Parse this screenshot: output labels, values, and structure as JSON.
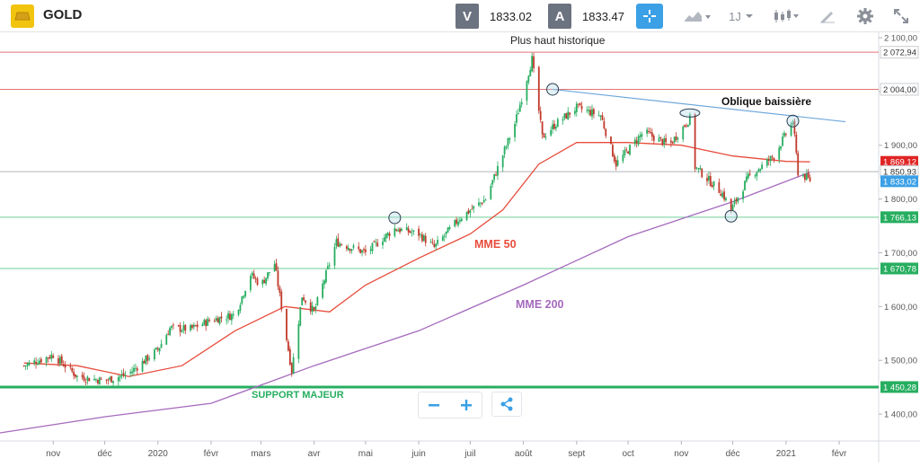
{
  "header": {
    "asset_name": "GOLD",
    "bid_tag": "V",
    "bid_value": "1833.02",
    "ask_tag": "A",
    "ask_value": "1833.47",
    "timeframe": "1J"
  },
  "colors": {
    "accent": "#3ba0e6",
    "mme50": "#e74c3c",
    "mme200": "#a569bd",
    "support": "#27ae60",
    "resistance": "#e57373",
    "bull": "#27ae60",
    "bear": "#c0392b"
  },
  "annotations": {
    "ath": "Plus haut historique",
    "oblique": "Oblique baissière",
    "mme50": "MME 50",
    "mme200": "MME 200",
    "support": "SUPPORT MAJEUR"
  },
  "x_axis_labels": [
    "nov",
    "déc",
    "2020",
    "févr",
    "mars",
    "avr",
    "mai",
    "juin",
    "juil",
    "août",
    "sept",
    "oct",
    "nov",
    "déc",
    "2021",
    "févr"
  ],
  "y_axis_labels": [
    "2 100,00",
    "2 000,00",
    "1 900,00",
    "1 800,00",
    "1 700,00",
    "1 600,00",
    "1 500,00",
    "1 400,00"
  ],
  "price_tags": [
    {
      "label": "2 072,94",
      "kind": "resistance"
    },
    {
      "label": "2 004,00",
      "kind": "resistance"
    },
    {
      "label": "1 869,12",
      "kind": "mme50"
    },
    {
      "label": "1 850,93",
      "kind": "neutral"
    },
    {
      "label": "1 833,02",
      "kind": "last"
    },
    {
      "label": "1 766,13",
      "kind": "support"
    },
    {
      "label": "1 670,78",
      "kind": "support"
    },
    {
      "label": "1 450,28",
      "kind": "support-major"
    }
  ],
  "chart_data": {
    "type": "candlestick",
    "instrument": "GOLD",
    "ylim": [
      1350,
      2110
    ],
    "horizontal_levels": [
      2072.94,
      2004.0,
      1850.93,
      1766.13,
      1670.78,
      1450.28
    ],
    "close_series": [
      {
        "d": "2019-10-15",
        "v": 1490
      },
      {
        "d": "2019-11-01",
        "v": 1510
      },
      {
        "d": "2019-11-15",
        "v": 1470
      },
      {
        "d": "2019-12-01",
        "v": 1462
      },
      {
        "d": "2019-12-15",
        "v": 1475
      },
      {
        "d": "2020-01-01",
        "v": 1520
      },
      {
        "d": "2020-01-08",
        "v": 1560
      },
      {
        "d": "2020-01-20",
        "v": 1558
      },
      {
        "d": "2020-02-01",
        "v": 1575
      },
      {
        "d": "2020-02-15",
        "v": 1585
      },
      {
        "d": "2020-02-24",
        "v": 1660
      },
      {
        "d": "2020-03-01",
        "v": 1640
      },
      {
        "d": "2020-03-09",
        "v": 1680
      },
      {
        "d": "2020-03-19",
        "v": 1480
      },
      {
        "d": "2020-03-25",
        "v": 1620
      },
      {
        "d": "2020-04-01",
        "v": 1590
      },
      {
        "d": "2020-04-14",
        "v": 1720
      },
      {
        "d": "2020-05-01",
        "v": 1700
      },
      {
        "d": "2020-05-18",
        "v": 1745
      },
      {
        "d": "2020-06-01",
        "v": 1735
      },
      {
        "d": "2020-06-10",
        "v": 1710
      },
      {
        "d": "2020-06-25",
        "v": 1765
      },
      {
        "d": "2020-07-10",
        "v": 1800
      },
      {
        "d": "2020-07-27",
        "v": 1940
      },
      {
        "d": "2020-08-06",
        "v": 2060
      },
      {
        "d": "2020-08-12",
        "v": 1915
      },
      {
        "d": "2020-08-20",
        "v": 1940
      },
      {
        "d": "2020-09-01",
        "v": 1970
      },
      {
        "d": "2020-09-15",
        "v": 1955
      },
      {
        "d": "2020-09-24",
        "v": 1865
      },
      {
        "d": "2020-10-10",
        "v": 1925
      },
      {
        "d": "2020-10-25",
        "v": 1900
      },
      {
        "d": "2020-11-06",
        "v": 1950
      },
      {
        "d": "2020-11-09",
        "v": 1860
      },
      {
        "d": "2020-11-25",
        "v": 1810
      },
      {
        "d": "2020-11-30",
        "v": 1780
      },
      {
        "d": "2020-12-10",
        "v": 1840
      },
      {
        "d": "2020-12-25",
        "v": 1880
      },
      {
        "d": "2021-01-05",
        "v": 1945
      },
      {
        "d": "2021-01-08",
        "v": 1850
      },
      {
        "d": "2021-01-15",
        "v": 1835
      }
    ],
    "mme50": [
      {
        "d": "2019-10-15",
        "v": 1495
      },
      {
        "d": "2019-11-15",
        "v": 1490
      },
      {
        "d": "2019-12-15",
        "v": 1470
      },
      {
        "d": "2020-01-15",
        "v": 1490
      },
      {
        "d": "2020-02-15",
        "v": 1555
      },
      {
        "d": "2020-03-15",
        "v": 1600
      },
      {
        "d": "2020-04-10",
        "v": 1590
      },
      {
        "d": "2020-05-01",
        "v": 1640
      },
      {
        "d": "2020-06-01",
        "v": 1690
      },
      {
        "d": "2020-07-01",
        "v": 1735
      },
      {
        "d": "2020-07-20",
        "v": 1780
      },
      {
        "d": "2020-08-10",
        "v": 1865
      },
      {
        "d": "2020-09-01",
        "v": 1905
      },
      {
        "d": "2020-10-01",
        "v": 1905
      },
      {
        "d": "2020-11-01",
        "v": 1900
      },
      {
        "d": "2020-12-01",
        "v": 1880
      },
      {
        "d": "2021-01-01",
        "v": 1870
      },
      {
        "d": "2021-01-15",
        "v": 1869.12
      }
    ],
    "mme200": [
      {
        "d": "2019-10-01",
        "v": 1365
      },
      {
        "d": "2019-12-01",
        "v": 1395
      },
      {
        "d": "2020-02-01",
        "v": 1420
      },
      {
        "d": "2020-04-01",
        "v": 1490
      },
      {
        "d": "2020-06-01",
        "v": 1555
      },
      {
        "d": "2020-08-01",
        "v": 1640
      },
      {
        "d": "2020-10-01",
        "v": 1730
      },
      {
        "d": "2020-12-01",
        "v": 1795
      },
      {
        "d": "2021-01-15",
        "v": 1850
      }
    ],
    "trendline": [
      {
        "d": "2020-08-18",
        "v": 2004
      },
      {
        "d": "2021-01-20",
        "v": 1937
      }
    ],
    "circled_points": [
      {
        "d": "2020-05-18",
        "v": 1765
      },
      {
        "d": "2020-08-18",
        "v": 2004
      },
      {
        "d": "2020-11-06",
        "v": 1960
      },
      {
        "d": "2020-11-30",
        "v": 1768
      },
      {
        "d": "2021-01-05",
        "v": 1945
      }
    ]
  }
}
